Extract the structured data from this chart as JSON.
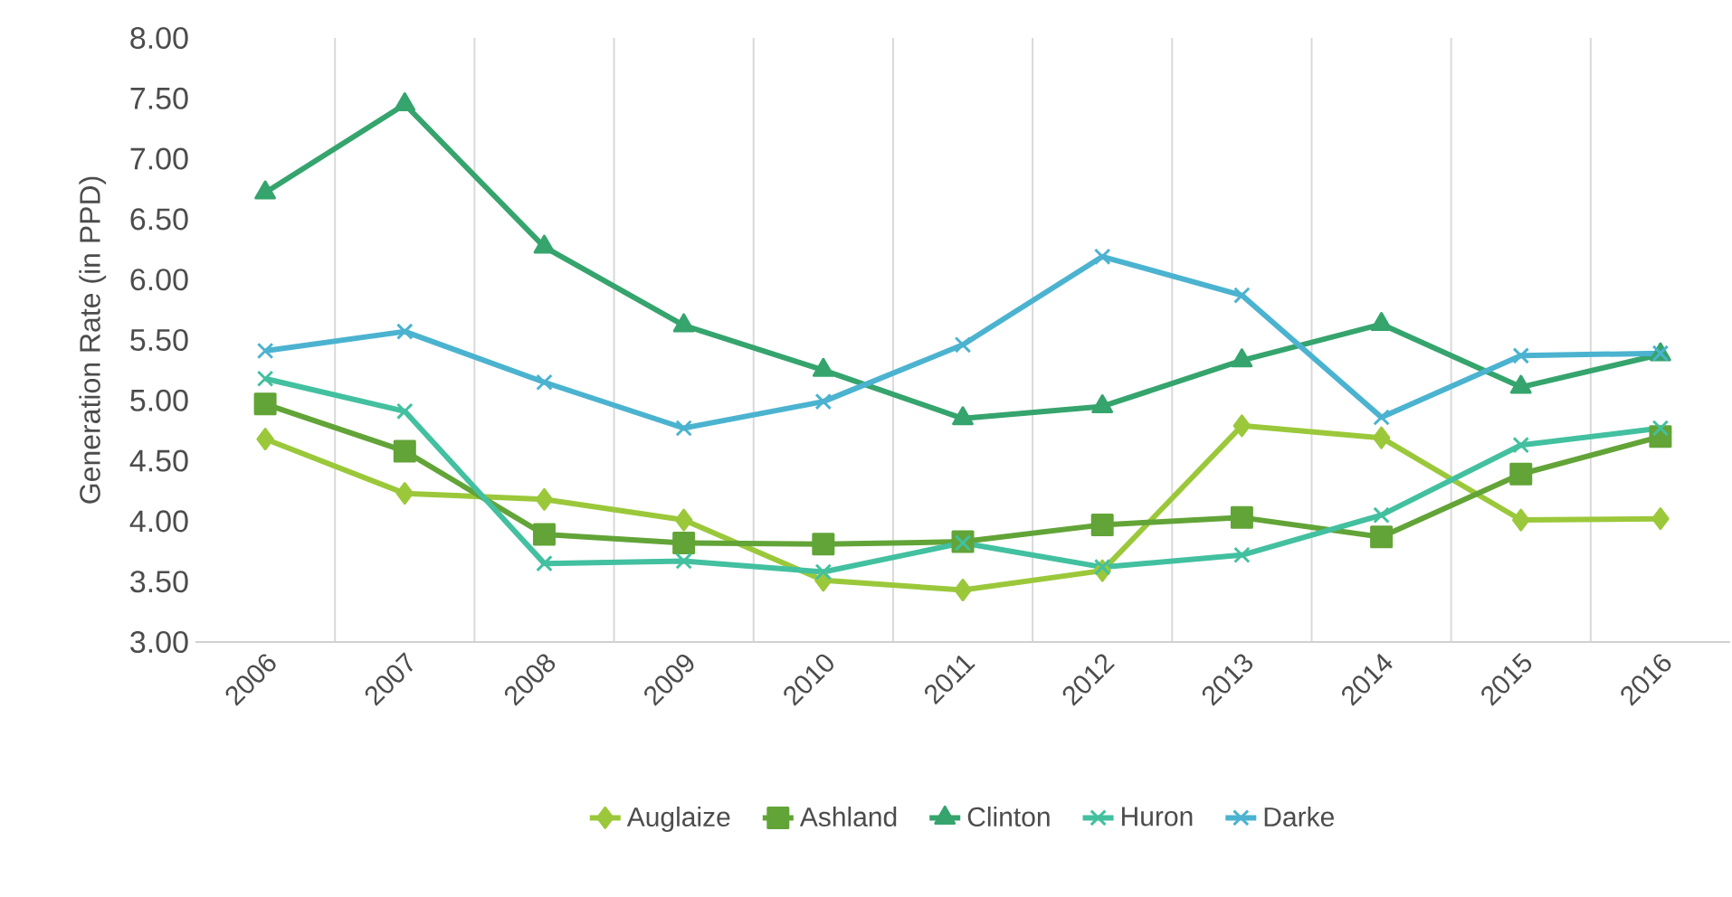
{
  "chart_data": {
    "type": "line",
    "ylabel": "Generation Rate (in PPD)",
    "categories": [
      "2006",
      "2007",
      "2008",
      "2009",
      "2010",
      "2011",
      "2012",
      "2013",
      "2014",
      "2015",
      "2016"
    ],
    "series": [
      {
        "name": "Auglaize",
        "color": "#9bc83a",
        "marker": "diamond",
        "values": [
          4.68,
          4.23,
          4.18,
          4.01,
          3.51,
          3.43,
          3.59,
          4.79,
          4.69,
          4.01,
          4.02
        ]
      },
      {
        "name": "Ashland",
        "color": "#62a437",
        "marker": "square",
        "values": [
          4.97,
          4.58,
          3.89,
          3.82,
          3.81,
          3.83,
          3.97,
          4.03,
          3.87,
          4.39,
          4.7
        ]
      },
      {
        "name": "Clinton",
        "color": "#35a46d",
        "marker": "triangle",
        "values": [
          6.72,
          7.45,
          6.27,
          5.62,
          5.25,
          4.85,
          4.95,
          5.33,
          5.63,
          5.11,
          5.38
        ]
      },
      {
        "name": "Huron",
        "color": "#42c0a0",
        "marker": "cross",
        "values": [
          5.18,
          4.91,
          3.65,
          3.67,
          3.58,
          3.82,
          3.62,
          3.72,
          4.05,
          4.63,
          4.77
        ]
      },
      {
        "name": "Darke",
        "color": "#4bb3d0",
        "marker": "cross",
        "values": [
          5.41,
          5.57,
          5.15,
          4.77,
          4.99,
          5.46,
          6.19,
          5.87,
          4.86,
          5.37,
          5.39
        ]
      }
    ],
    "ylim": [
      3.0,
      8.0
    ],
    "yticks": [
      {
        "value": 3.0,
        "label": "3.00"
      },
      {
        "value": 3.5,
        "label": "3.50"
      },
      {
        "value": 4.0,
        "label": "4.00"
      },
      {
        "value": 4.5,
        "label": "4.50"
      },
      {
        "value": 5.0,
        "label": "5.00"
      },
      {
        "value": 5.5,
        "label": "5.50"
      },
      {
        "value": 6.0,
        "label": "6.00"
      },
      {
        "value": 6.5,
        "label": "6.50"
      },
      {
        "value": 7.0,
        "label": "7.00"
      },
      {
        "value": 7.5,
        "label": "7.50"
      },
      {
        "value": 8.0,
        "label": "8.00"
      }
    ],
    "grid": "x",
    "legend": "bottom",
    "line_style": "solid"
  }
}
